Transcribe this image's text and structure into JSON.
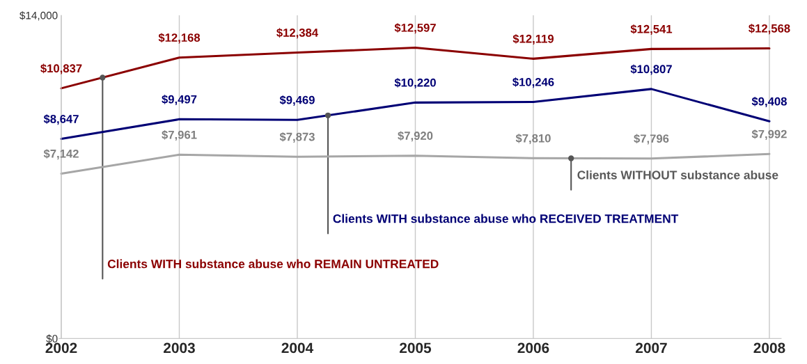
{
  "chart_data": {
    "type": "line",
    "categories": [
      "2002",
      "2003",
      "2004",
      "2005",
      "2006",
      "2007",
      "2008"
    ],
    "series": [
      {
        "name": "Clients WITH substance abuse who REMAIN UNTREATED",
        "color": "#8b0000",
        "values": [
          10837,
          12168,
          12384,
          12597,
          12119,
          12541,
          12568
        ],
        "value_labels": [
          "$10,837",
          "$12,168",
          "$12,384",
          "$12,597",
          "$12,119",
          "$12,541",
          "$12,568"
        ]
      },
      {
        "name": "Clients WITH substance abuse who RECEIVED TREATMENT",
        "color": "#000075",
        "values": [
          8647,
          9497,
          9469,
          10220,
          10246,
          10807,
          9408
        ],
        "value_labels": [
          "$8,647",
          "$9,497",
          "$9,469",
          "$10,220",
          "$10,246",
          "$10,807",
          "$9,408"
        ]
      },
      {
        "name": "Clients WITHOUT substance abuse",
        "color": "#a6a6a6",
        "values": [
          7142,
          7961,
          7873,
          7920,
          7810,
          7796,
          7992
        ],
        "value_labels": [
          "$7,142",
          "$7,961",
          "$7,873",
          "$7,920",
          "$7,810",
          "$7,796",
          "$7,992"
        ]
      }
    ],
    "ylim": [
      0,
      14000
    ],
    "yticks": [
      {
        "value": 0,
        "label": "$0"
      },
      {
        "value": 14000,
        "label": "$14,000"
      }
    ],
    "grid": "x",
    "legend": false,
    "marker": "none",
    "line_style": "solid"
  }
}
